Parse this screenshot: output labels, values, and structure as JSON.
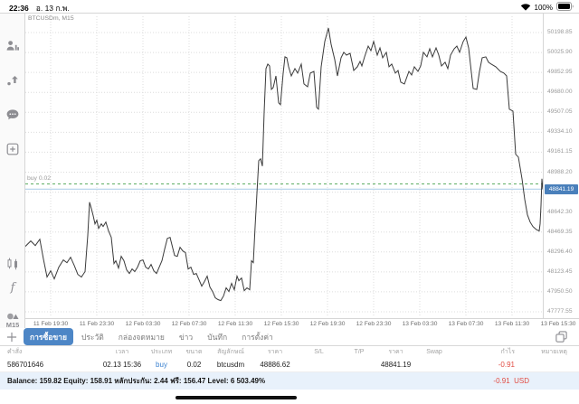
{
  "status_bar": {
    "time": "22:36",
    "date": "อ. 13 ก.พ.",
    "battery_percent": "100%"
  },
  "sidebar": {
    "top_icons": [
      "trader-icon",
      "trade-arrow-icon",
      "chat-icon",
      "new-chart-icon"
    ],
    "bottom_icons": [
      "candlestick-icon",
      "indicator-f-icon",
      "objects-icon"
    ],
    "timeframe_label": "M15"
  },
  "chart": {
    "symbol_label": "BTCUSDm, M15",
    "position_line": {
      "label": "buy 0.02",
      "price": 48886.62
    },
    "bid_line": {
      "price": 48841.19,
      "badge": "48841.19"
    },
    "colors": {
      "line": "#3a3a3a",
      "grid": "#dcdcdc",
      "position_line": "#5fae63",
      "bid_line": "#a9cbe8",
      "badge_bg": "#4a80bb"
    }
  },
  "chart_data": {
    "type": "line",
    "title": "BTCUSDm, M15",
    "x_tick_labels": [
      "11 Feb 19:30",
      "11 Feb 23:30",
      "12 Feb 03:30",
      "12 Feb 07:30",
      "12 Feb 11:30",
      "12 Feb 15:30",
      "12 Feb 19:30",
      "12 Feb 23:30",
      "13 Feb 03:30",
      "13 Feb 07:30",
      "13 Feb 11:30",
      "13 Feb 15:30"
    ],
    "y_tick_labels": [
      "50198.85",
      "50025.90",
      "49852.95",
      "49680.00",
      "49507.05",
      "49334.10",
      "49161.15",
      "48988.20",
      "48815.25",
      "48642.30",
      "48469.35",
      "48296.40",
      "48123.45",
      "47950.50",
      "47777.55"
    ],
    "y_axis": {
      "top": 50198.85,
      "bottom": 47777.55,
      "step": 172.95
    },
    "annotations": {
      "position_price": 48886.62,
      "bid_price": 48841.19
    },
    "series": [
      {
        "name": "BTCUSDm M15",
        "points": [
          [
            0,
            48345
          ],
          [
            6,
            48392
          ],
          [
            11,
            48352
          ],
          [
            16,
            48407
          ],
          [
            20,
            48235
          ],
          [
            24,
            48079
          ],
          [
            28,
            48133
          ],
          [
            32,
            48063
          ],
          [
            37,
            48165
          ],
          [
            42,
            48227
          ],
          [
            46,
            48204
          ],
          [
            50,
            48251
          ],
          [
            54,
            48180
          ],
          [
            58,
            48102
          ],
          [
            62,
            48079
          ],
          [
            66,
            48126
          ],
          [
            69,
            48439
          ],
          [
            71,
            48728
          ],
          [
            73,
            48673
          ],
          [
            75,
            48611
          ],
          [
            77,
            48540
          ],
          [
            79,
            48572
          ],
          [
            81,
            48501
          ],
          [
            84,
            48540
          ],
          [
            86,
            48517
          ],
          [
            89,
            48556
          ],
          [
            92,
            48478
          ],
          [
            95,
            48423
          ],
          [
            98,
            48196
          ],
          [
            100,
            48220
          ],
          [
            103,
            48157
          ],
          [
            106,
            48259
          ],
          [
            109,
            48220
          ],
          [
            112,
            48141
          ],
          [
            115,
            48110
          ],
          [
            118,
            48149
          ],
          [
            121,
            48126
          ],
          [
            124,
            48165
          ],
          [
            127,
            48220
          ],
          [
            130,
            48227
          ],
          [
            133,
            48165
          ],
          [
            136,
            48149
          ],
          [
            139,
            48188
          ],
          [
            142,
            48133
          ],
          [
            145,
            48110
          ],
          [
            148,
            48165
          ],
          [
            151,
            48220
          ],
          [
            154,
            48321
          ],
          [
            157,
            48415
          ],
          [
            160,
            48423
          ],
          [
            162,
            48360
          ],
          [
            165,
            48266
          ],
          [
            168,
            48259
          ],
          [
            171,
            48337
          ],
          [
            174,
            48306
          ],
          [
            177,
            48290
          ],
          [
            180,
            48149
          ],
          [
            183,
            48165
          ],
          [
            186,
            48102
          ],
          [
            189,
            48110
          ],
          [
            192,
            48055
          ],
          [
            195,
            48000
          ],
          [
            198,
            48040
          ],
          [
            201,
            48087
          ],
          [
            204,
            47993
          ],
          [
            207,
            47953
          ],
          [
            210,
            47899
          ],
          [
            213,
            47883
          ],
          [
            216,
            47875
          ],
          [
            219,
            47914
          ],
          [
            222,
            47985
          ],
          [
            225,
            47953
          ],
          [
            228,
            48024
          ],
          [
            231,
            47969
          ],
          [
            234,
            48087
          ],
          [
            236,
            48047
          ],
          [
            239,
            48071
          ],
          [
            242,
            47961
          ],
          [
            245,
            47985
          ],
          [
            248,
            47969
          ],
          [
            250,
            48220
          ],
          [
            252,
            48204
          ],
          [
            254,
            48517
          ],
          [
            256,
            48806
          ],
          [
            258,
            49088
          ],
          [
            260,
            49104
          ],
          [
            262,
            49041
          ],
          [
            264,
            49510
          ],
          [
            266,
            49886
          ],
          [
            268,
            49925
          ],
          [
            270,
            49909
          ],
          [
            272,
            49706
          ],
          [
            274,
            49722
          ],
          [
            277,
            49823
          ],
          [
            280,
            49589
          ],
          [
            282,
            49573
          ],
          [
            285,
            49847
          ],
          [
            287,
            49988
          ],
          [
            289,
            49980
          ],
          [
            291,
            49902
          ],
          [
            294,
            49823
          ],
          [
            298,
            49886
          ],
          [
            301,
            49847
          ],
          [
            305,
            49925
          ],
          [
            308,
            49753
          ],
          [
            312,
            49729
          ],
          [
            315,
            49847
          ],
          [
            319,
            49862
          ],
          [
            322,
            49550
          ],
          [
            324,
            49534
          ],
          [
            327,
            49902
          ],
          [
            331,
            50121
          ],
          [
            335,
            50238
          ],
          [
            338,
            50097
          ],
          [
            342,
            49964
          ],
          [
            345,
            49823
          ],
          [
            349,
            49980
          ],
          [
            352,
            50027
          ],
          [
            355,
            50003
          ],
          [
            359,
            50019
          ],
          [
            363,
            49870
          ],
          [
            367,
            49902
          ],
          [
            370,
            49948
          ],
          [
            372,
            49909
          ],
          [
            375,
            49988
          ],
          [
            379,
            50081
          ],
          [
            382,
            50042
          ],
          [
            385,
            50121
          ],
          [
            389,
            50003
          ],
          [
            392,
            50066
          ],
          [
            395,
            49980
          ],
          [
            399,
            50027
          ],
          [
            402,
            49902
          ],
          [
            405,
            49925
          ],
          [
            409,
            49847
          ],
          [
            412,
            49870
          ],
          [
            415,
            49769
          ],
          [
            419,
            49753
          ],
          [
            424,
            49862
          ],
          [
            427,
            49831
          ],
          [
            430,
            49902
          ],
          [
            434,
            49862
          ],
          [
            437,
            49909
          ],
          [
            440,
            50027
          ],
          [
            444,
            49988
          ],
          [
            447,
            50058
          ],
          [
            450,
            49988
          ],
          [
            454,
            50066
          ],
          [
            457,
            50003
          ],
          [
            460,
            49909
          ],
          [
            464,
            49941
          ],
          [
            467,
            49886
          ],
          [
            470,
            50003
          ],
          [
            474,
            50058
          ],
          [
            477,
            50081
          ],
          [
            480,
            50027
          ],
          [
            484,
            50121
          ],
          [
            487,
            50160
          ],
          [
            490,
            50066
          ],
          [
            495,
            49714
          ],
          [
            499,
            49706
          ],
          [
            502,
            49862
          ],
          [
            505,
            49980
          ],
          [
            509,
            49988
          ],
          [
            512,
            49941
          ],
          [
            515,
            49925
          ],
          [
            520,
            49902
          ],
          [
            525,
            49862
          ],
          [
            529,
            49847
          ],
          [
            532,
            49823
          ],
          [
            535,
            49534
          ],
          [
            539,
            49518
          ],
          [
            542,
            49143
          ],
          [
            545,
            49119
          ],
          [
            549,
            48931
          ],
          [
            552,
            48752
          ],
          [
            555,
            48618
          ],
          [
            558,
            48556
          ],
          [
            561,
            48517
          ],
          [
            563,
            48503
          ],
          [
            565,
            48490
          ],
          [
            567,
            48482
          ],
          [
            568,
            48478
          ],
          [
            569,
            48540
          ],
          [
            570,
            48700
          ],
          [
            571,
            48931
          ],
          [
            572,
            48841
          ]
        ]
      }
    ]
  },
  "tab_bar": {
    "tabs": [
      {
        "label": "การซื้อขาย",
        "active": true
      },
      {
        "label": "ประวัติ",
        "active": false
      },
      {
        "label": "กล่องจดหมาย",
        "active": false
      },
      {
        "label": "ข่าว",
        "active": false
      },
      {
        "label": "บันทึก",
        "active": false
      },
      {
        "label": "การตั้งค่า",
        "active": false
      }
    ],
    "active_bg": "#4d86c6"
  },
  "trade_table": {
    "headers": [
      "คำสั่ง",
      "เวลา",
      "ประเภท",
      "ขนาด",
      "สัญลักษณ์",
      "ราคา",
      "S/L",
      "T/P",
      "ราคา",
      "Swap",
      "กำไร",
      "หมายเหตุ"
    ],
    "row": {
      "cells": [
        "586701646",
        "02.13 15:36",
        "buy",
        "0.02",
        "btcusdm",
        "48886.62",
        "",
        "",
        "48841.19",
        "",
        "-0.91",
        ""
      ],
      "type_color": "#3b82d0",
      "profit_color": "#e14b42"
    }
  },
  "account_bar": {
    "summary": "Balance: 159.82 Equity: 158.91 หลักประกัน: 2.44 ฟรี: 156.47 Level: 6 503.49%",
    "profit": "-0.91",
    "currency": "USD",
    "profit_color": "#e14b42"
  }
}
